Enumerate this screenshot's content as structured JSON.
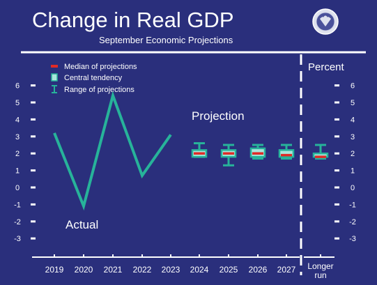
{
  "header": {
    "title": "Change in Real GDP",
    "subtitle": "September Economic Projections",
    "unit_label": "Percent"
  },
  "legend": {
    "placement": "top-left",
    "items": [
      {
        "label": "Median of projections",
        "icon": "red-dash"
      },
      {
        "label": "Central tendency",
        "icon": "teal-box"
      },
      {
        "label": "Range of projections",
        "icon": "range-bracket"
      }
    ]
  },
  "annotations": {
    "actual": "Actual",
    "projection": "Projection"
  },
  "colors": {
    "background": "#2a2f7c",
    "series": "#27b39a",
    "median": "#e02a26",
    "text": "#ffffff"
  },
  "chart_data": {
    "type": "line",
    "categories": [
      "2019",
      "2020",
      "2021",
      "2022",
      "2023",
      "2024",
      "2025",
      "2026",
      "2027",
      "Longer run"
    ],
    "ylim": [
      -3,
      6
    ],
    "yticks": [
      6,
      5,
      4,
      3,
      2,
      1,
      0,
      -1,
      -2,
      -3
    ],
    "grid": false,
    "series": [
      {
        "name": "Actual",
        "type": "line",
        "x": [
          "2019",
          "2020",
          "2021",
          "2022",
          "2023"
        ],
        "values": [
          3.2,
          -1.1,
          5.4,
          0.7,
          3.1
        ]
      },
      {
        "name": "Projection",
        "type": "boxplot",
        "points": [
          {
            "x": "2024",
            "range": [
              1.8,
              2.6
            ],
            "central": [
              1.8,
              2.2
            ],
            "median": 2.0
          },
          {
            "x": "2025",
            "range": [
              1.3,
              2.5
            ],
            "central": [
              1.8,
              2.2
            ],
            "median": 2.0
          },
          {
            "x": "2026",
            "range": [
              1.7,
              2.5
            ],
            "central": [
              1.8,
              2.3
            ],
            "median": 2.0
          },
          {
            "x": "2027",
            "range": [
              1.7,
              2.5
            ],
            "central": [
              1.8,
              2.2
            ],
            "median": 1.9
          },
          {
            "x": "Longer run",
            "range": [
              1.7,
              2.5
            ],
            "central": [
              1.8,
              2.0
            ],
            "median": 1.8
          }
        ]
      }
    ]
  }
}
